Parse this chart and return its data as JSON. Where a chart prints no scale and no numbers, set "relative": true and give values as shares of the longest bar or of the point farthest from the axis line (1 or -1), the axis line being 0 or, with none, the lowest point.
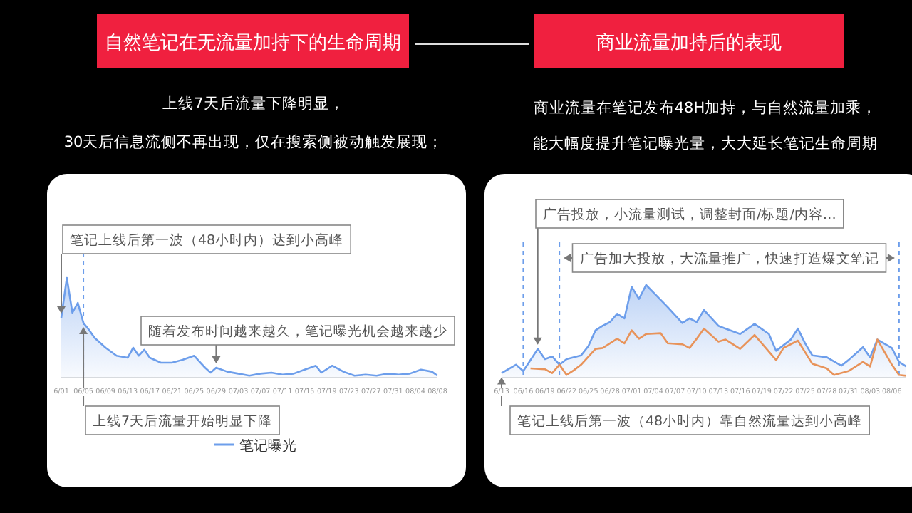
{
  "chart_data": [
    {
      "type": "area",
      "title": "自然笔记在无流量加持下的生命周期",
      "subtitle": "上线7天后流量下降明显，",
      "relative": true,
      "legend": "bottom",
      "xlim": [
        "--06-01",
        "--08-08"
      ],
      "xticks": [
        {
          "value": "--06-01",
          "label": "6/01"
        },
        {
          "value": "--06-05",
          "label": "06/05"
        },
        {
          "value": "--06-09",
          "label": "06/09"
        },
        {
          "value": "--06-13",
          "label": "06/13"
        },
        {
          "value": "--06-17",
          "label": "06/17"
        },
        {
          "value": "--06-21",
          "label": "06/21"
        },
        {
          "value": "--06-25",
          "label": "06/25"
        },
        {
          "value": "--06-29",
          "label": "06/29"
        },
        {
          "value": "--07-03",
          "label": "07/03"
        },
        {
          "value": "--07-07",
          "label": "07/07"
        },
        {
          "value": "--07-11",
          "label": "07/11"
        },
        {
          "value": "--07-15",
          "label": "07/15"
        },
        {
          "value": "--07-19",
          "label": "07/19"
        },
        {
          "value": "--07-23",
          "label": "07/23"
        },
        {
          "value": "--07-27",
          "label": "07/27"
        },
        {
          "value": "--07-31",
          "label": "07/31"
        },
        {
          "value": "--08-04",
          "label": "08/04"
        },
        {
          "value": "--08-08",
          "label": "08/08"
        }
      ],
      "series": [
        {
          "name": "笔记曝光",
          "color": "#6d9eeb",
          "x": [
            "--06-01",
            "--06-02",
            "--06-03",
            "--06-04",
            "--06-05",
            "--06-06",
            "--06-07",
            "--06-09",
            "--06-11",
            "--06-13",
            "--06-14",
            "--06-15",
            "--06-16",
            "--06-17",
            "--06-19",
            "--06-21",
            "--06-23",
            "--06-25",
            "--06-27",
            "--06-28",
            "--06-29",
            "--07-01",
            "--07-03",
            "--07-05",
            "--07-07",
            "--07-09",
            "--07-11",
            "--07-13",
            "--07-15",
            "--07-17",
            "--07-18",
            "--07-20",
            "--07-22",
            "--07-24",
            "--07-26",
            "--07-28",
            "--07-30",
            "--08-01",
            "--08-03",
            "--08-05",
            "--08-07",
            "--08-08"
          ],
          "values": [
            0.6,
            1,
            0.65,
            0.75,
            0.55,
            0.48,
            0.4,
            0.3,
            0.22,
            0.2,
            0.3,
            0.22,
            0.28,
            0.2,
            0.15,
            0.15,
            0.18,
            0.22,
            0.1,
            0.05,
            0.1,
            0.06,
            0.04,
            0.02,
            0.04,
            0.05,
            0.03,
            0.04,
            0.08,
            0.12,
            0.05,
            0.12,
            0.06,
            0.02,
            0.03,
            0.02,
            0.04,
            0.03,
            0.04,
            0.08,
            0.06,
            0.02
          ]
        }
      ],
      "ref_lines": [
        {
          "axis": "x",
          "value": "--06-05",
          "line_style": "dashed",
          "color": "#6d9eeb"
        }
      ],
      "annotations": [
        "30天后信息流侧不再出现，仅在搜索侧被动触发展现；",
        {
          "text": "笔记上线后第一波（48小时内）达到小高峰",
          "x": "--06-01",
          "y": 0.6
        },
        {
          "text": "随着发布时间越来越久，笔记曝光机会越来越少",
          "x": "--06-29",
          "y": 0.1
        },
        {
          "text": "上线7天后流量开始明显下降",
          "x": "--06-05",
          "y": 0.55
        }
      ]
    },
    {
      "type": "area",
      "title": "商业流量加持后的表现",
      "subtitle": "商业流量在笔记发布48H加持，与自然流量加乘，",
      "relative": true,
      "xlim": [
        "--06-13",
        "--08-08"
      ],
      "xticks": [
        {
          "value": "--06-13",
          "label": "6/13"
        },
        {
          "value": "--06-16",
          "label": "06/16"
        },
        {
          "value": "--06-19",
          "label": "06/19"
        },
        {
          "value": "--06-22",
          "label": "06/22"
        },
        {
          "value": "--06-25",
          "label": "06/25"
        },
        {
          "value": "--06-28",
          "label": "06/28"
        },
        {
          "value": "--07-01",
          "label": "07/01"
        },
        {
          "value": "--07-04",
          "label": "07/04"
        },
        {
          "value": "--07-07",
          "label": "07/07"
        },
        {
          "value": "--07-10",
          "label": "07/10"
        },
        {
          "value": "--07-13",
          "label": "07/13"
        },
        {
          "value": "--07-16",
          "label": "07/16"
        },
        {
          "value": "--07-19",
          "label": "07/19"
        },
        {
          "value": "--07-22",
          "label": "07/22"
        },
        {
          "value": "--07-25",
          "label": "07/25"
        },
        {
          "value": "--07-28",
          "label": "07/28"
        },
        {
          "value": "--07-31",
          "label": "07/31"
        },
        {
          "value": "--08-03",
          "label": "08/03"
        },
        {
          "value": "--08-06",
          "label": "08/06"
        }
      ],
      "series": [
        {
          "color": "#6d9eeb",
          "x": [
            "--06-13",
            "--06-15",
            "--06-16",
            "--06-18",
            "--06-19",
            "--06-20",
            "--06-21",
            "--06-22",
            "--06-24",
            "--06-25",
            "--06-26",
            "--06-27",
            "--06-28",
            "--06-29",
            "--06-30",
            "--07-01",
            "--07-02",
            "--07-03",
            "--07-04",
            "--07-06",
            "--07-08",
            "--07-09",
            "--07-10",
            "--07-11",
            "--07-13",
            "--07-14",
            "--07-16",
            "--07-18",
            "--07-20",
            "--07-21",
            "--07-23",
            "--07-24",
            "--07-25",
            "--07-26",
            "--07-28",
            "--07-30",
            "--07-31",
            "--08-02",
            "--08-03",
            "--08-04",
            "--08-06",
            "--08-07",
            "--08-08"
          ],
          "values": [
            0.05,
            0.14,
            0.07,
            0.31,
            0.2,
            0.23,
            0.14,
            0.2,
            0.24,
            0.34,
            0.51,
            0.56,
            0.6,
            0.69,
            0.64,
            0.98,
            0.85,
            1,
            0.92,
            0.76,
            0.59,
            0.64,
            0.6,
            0.73,
            0.56,
            0.53,
            0.47,
            0.58,
            0.47,
            0.29,
            0.41,
            0.53,
            0.37,
            0.24,
            0.22,
            0.13,
            0.19,
            0.33,
            0.22,
            0.41,
            0.32,
            0.17,
            0.12
          ]
        },
        {
          "type": "line",
          "color": "#e8935a",
          "x": [
            "--06-17",
            "--06-19",
            "--06-20",
            "--06-21",
            "--06-22",
            "--06-23",
            "--06-24",
            "--06-26",
            "--06-27",
            "--06-29",
            "--06-30",
            "--07-01",
            "--07-02",
            "--07-03",
            "--07-05",
            "--07-06",
            "--07-08",
            "--07-09",
            "--07-10",
            "--07-11",
            "--07-13",
            "--07-14",
            "--07-16",
            "--07-18",
            "--07-19",
            "--07-21",
            "--07-22",
            "--07-24",
            "--07-26",
            "--07-28",
            "--07-29",
            "--07-31",
            "--08-02",
            "--08-03",
            "--08-04",
            "--08-06",
            "--08-07",
            "--08-08"
          ],
          "values": [
            0.1,
            0.09,
            0.05,
            0.14,
            0.03,
            0.08,
            0.14,
            0.31,
            0.32,
            0.42,
            0.37,
            0.51,
            0.42,
            0.47,
            0.48,
            0.37,
            0.36,
            0.32,
            0.42,
            0.53,
            0.39,
            0.41,
            0.31,
            0.46,
            0.37,
            0.19,
            0.32,
            0.4,
            0.15,
            0.1,
            0.03,
            0.07,
            0.17,
            0.12,
            0.41,
            0.14,
            0.03,
            0.02
          ]
        }
      ],
      "ref_lines": [
        {
          "axis": "x",
          "value": "--06-16",
          "line_style": "dashed",
          "color": "#6d9eeb"
        },
        {
          "axis": "x",
          "value": "--06-21",
          "line_style": "dashed",
          "color": "#6d9eeb"
        },
        {
          "axis": "x",
          "value": "--08-07",
          "line_style": "dashed",
          "color": "#6d9eeb"
        }
      ],
      "annotations": [
        "能大幅度提升笔记曝光量，大大延长笔记生命周期",
        {
          "text": "广告投放，小流量测试，调整封面/标题/内容…",
          "x": "--06-18",
          "y": 0.31
        },
        "广告加大投放，大流量推广，快速打造爆文笔记",
        {
          "text": "笔记上线后第一波（48小时内）靠自然流量达到小高峰",
          "x": "--06-13",
          "y": 0.05
        }
      ]
    }
  ]
}
